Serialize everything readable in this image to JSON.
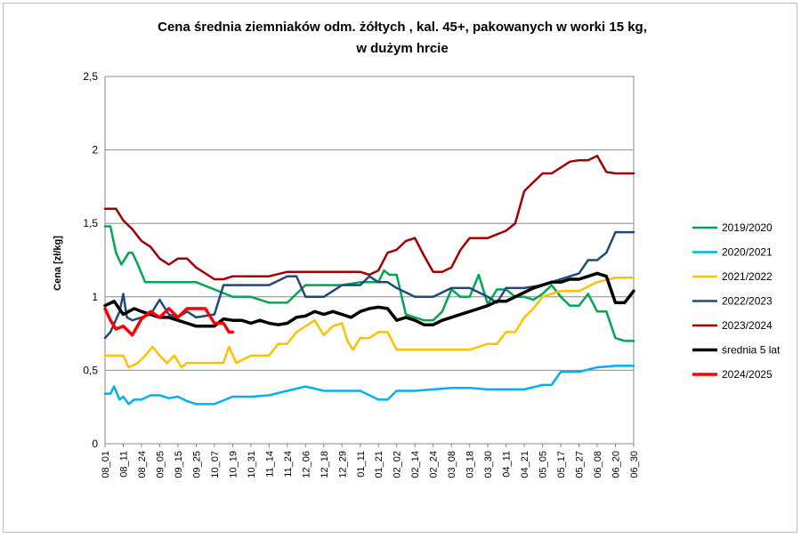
{
  "chart_data": {
    "type": "line",
    "title_lines": [
      "Cena średnia ziemniaków odm. żółtych , kal. 45+, pakowanych w worki 15 kg,",
      "w dużym hrcie"
    ],
    "xlabel": "",
    "ylabel": "Cena [zł/kg]",
    "ylim": [
      0,
      2.5
    ],
    "ytick_values": [
      0,
      0.5,
      1,
      1.5,
      2,
      2.5
    ],
    "ytick_labels": [
      "0",
      "0,5",
      "1",
      "1,5",
      "2",
      "2,5"
    ],
    "grid": "horizontal",
    "legend_position": "right",
    "categories": [
      "08_01",
      "08_11",
      "08_24",
      "09_05",
      "09_15",
      "09_25",
      "10_07",
      "10_19",
      "10_31",
      "11_14",
      "11_24",
      "12_06",
      "12_18",
      "12_29",
      "01_11",
      "01_21",
      "02_02",
      "02_14",
      "02_24",
      "03_08",
      "03_18",
      "03_30",
      "04_11",
      "04_21",
      "05_05",
      "05_17",
      "05_27",
      "06_08",
      "06_20",
      "06_30"
    ],
    "series": [
      {
        "name": "2019/2020",
        "color": "#00a650",
        "width": 2.5,
        "x": [
          0,
          0.3,
          0.6,
          0.9,
          1.3,
          1.5,
          1.8,
          2.2,
          2.5,
          3,
          3.5,
          4,
          5,
          6,
          7,
          8,
          9,
          10,
          11,
          12,
          13,
          14,
          15,
          15.3,
          15.6,
          16,
          16.5,
          17,
          17.5,
          18,
          18.5,
          19,
          19.5,
          20,
          20.5,
          21,
          21.5,
          22,
          22.5,
          23,
          23.5,
          24,
          24.5,
          25,
          25.5,
          26,
          26.5,
          27,
          27.5,
          28,
          28.5,
          29
        ],
        "values": [
          1.48,
          1.48,
          1.3,
          1.22,
          1.3,
          1.3,
          1.22,
          1.1,
          1.1,
          1.1,
          1.1,
          1.1,
          1.1,
          1.05,
          1.0,
          1.0,
          0.96,
          0.96,
          1.08,
          1.08,
          1.08,
          1.1,
          1.1,
          1.18,
          1.15,
          1.15,
          0.88,
          0.86,
          0.84,
          0.84,
          0.9,
          1.05,
          1.0,
          1.0,
          1.15,
          0.95,
          1.05,
          1.05,
          1.0,
          1.0,
          0.98,
          1.02,
          1.08,
          1.0,
          0.94,
          0.94,
          1.02,
          0.9,
          0.9,
          0.72,
          0.7,
          0.7
        ]
      },
      {
        "name": "2020/2021",
        "color": "#00b0f0",
        "width": 2.5,
        "x": [
          0,
          0.3,
          0.5,
          0.8,
          1,
          1.3,
          1.6,
          2,
          2.5,
          3,
          3.5,
          4,
          4.5,
          5,
          6,
          7,
          8,
          9,
          10,
          11,
          12,
          13,
          14,
          15,
          15.5,
          16,
          16.5,
          17,
          18,
          19,
          20,
          21,
          22,
          23,
          24,
          24.5,
          25,
          26,
          27,
          28,
          29
        ],
        "values": [
          0.34,
          0.34,
          0.39,
          0.3,
          0.32,
          0.27,
          0.3,
          0.3,
          0.33,
          0.33,
          0.31,
          0.32,
          0.29,
          0.27,
          0.27,
          0.32,
          0.32,
          0.33,
          0.36,
          0.39,
          0.36,
          0.36,
          0.36,
          0.3,
          0.3,
          0.36,
          0.36,
          0.36,
          0.37,
          0.38,
          0.38,
          0.37,
          0.37,
          0.37,
          0.4,
          0.4,
          0.49,
          0.49,
          0.52,
          0.53,
          0.53
        ]
      },
      {
        "name": "2021/2022",
        "color": "#ffc000",
        "width": 2.5,
        "x": [
          0,
          1,
          1.3,
          1.8,
          2.2,
          2.6,
          3,
          3.4,
          3.8,
          4.2,
          4.5,
          4.8,
          5.5,
          6.5,
          6.8,
          7.2,
          8,
          8.5,
          9,
          9.5,
          10,
          10.5,
          11,
          11.5,
          12,
          12.5,
          13,
          13.3,
          13.6,
          14,
          14.5,
          15,
          15.5,
          16,
          17,
          18,
          19,
          20,
          21,
          21.5,
          22,
          22.5,
          23,
          23.5,
          24,
          25,
          26,
          27,
          28,
          29
        ],
        "values": [
          0.6,
          0.6,
          0.52,
          0.55,
          0.6,
          0.66,
          0.6,
          0.55,
          0.6,
          0.52,
          0.55,
          0.55,
          0.55,
          0.55,
          0.66,
          0.55,
          0.6,
          0.6,
          0.6,
          0.68,
          0.68,
          0.76,
          0.8,
          0.84,
          0.74,
          0.8,
          0.82,
          0.7,
          0.64,
          0.72,
          0.72,
          0.76,
          0.76,
          0.64,
          0.64,
          0.64,
          0.64,
          0.64,
          0.68,
          0.68,
          0.76,
          0.76,
          0.86,
          0.92,
          1.0,
          1.04,
          1.04,
          1.1,
          1.13,
          1.13
        ]
      },
      {
        "name": "2022/2023",
        "color": "#1f497d",
        "width": 2.5,
        "x": [
          0,
          0.3,
          0.8,
          1,
          1.2,
          1.5,
          2,
          2.5,
          3,
          3.5,
          4,
          4.5,
          5,
          6,
          6.5,
          7,
          8,
          9,
          10,
          10.5,
          11,
          12,
          13,
          14,
          14.5,
          15,
          15.5,
          16,
          17,
          18,
          19,
          20,
          21,
          21.5,
          22,
          23,
          24,
          25,
          26,
          26.5,
          27,
          27.5,
          28,
          29
        ],
        "values": [
          0.72,
          0.76,
          0.9,
          1.02,
          0.86,
          0.84,
          0.86,
          0.88,
          0.98,
          0.88,
          0.86,
          0.9,
          0.86,
          0.88,
          1.08,
          1.08,
          1.08,
          1.08,
          1.14,
          1.14,
          1.0,
          1.0,
          1.08,
          1.08,
          1.14,
          1.1,
          1.1,
          1.06,
          1.0,
          1.0,
          1.06,
          1.06,
          1.0,
          0.96,
          1.06,
          1.06,
          1.08,
          1.12,
          1.16,
          1.25,
          1.25,
          1.3,
          1.44,
          1.44
        ]
      },
      {
        "name": "2023/2024",
        "color": "#a00000",
        "width": 2.5,
        "x": [
          0,
          0.6,
          1,
          1.5,
          2,
          2.5,
          3,
          3.5,
          4,
          4.5,
          5,
          6,
          6.5,
          7,
          8,
          9,
          10,
          11,
          12,
          13,
          14,
          14.5,
          15,
          15.5,
          16,
          16.5,
          17,
          17.5,
          18,
          18.5,
          19,
          19.5,
          20,
          20.5,
          21,
          22,
          22.5,
          23,
          23.5,
          24,
          24.5,
          25,
          25.5,
          26,
          26.5,
          27,
          27.5,
          28,
          29
        ],
        "values": [
          1.6,
          1.6,
          1.52,
          1.46,
          1.38,
          1.34,
          1.26,
          1.22,
          1.26,
          1.26,
          1.2,
          1.12,
          1.12,
          1.14,
          1.14,
          1.14,
          1.17,
          1.17,
          1.17,
          1.17,
          1.17,
          1.15,
          1.18,
          1.3,
          1.32,
          1.38,
          1.4,
          1.28,
          1.17,
          1.17,
          1.2,
          1.32,
          1.4,
          1.4,
          1.4,
          1.45,
          1.5,
          1.72,
          1.78,
          1.84,
          1.84,
          1.88,
          1.92,
          1.93,
          1.93,
          1.96,
          1.85,
          1.84,
          1.84
        ]
      },
      {
        "name": "średnia 5 lat",
        "color": "#000000",
        "width": 3.5,
        "x": [
          0,
          0.5,
          1,
          1.3,
          1.6,
          2,
          2.5,
          3,
          3.5,
          4,
          4.5,
          5,
          5.5,
          6,
          6.5,
          7,
          7.5,
          8,
          8.5,
          9,
          9.5,
          10,
          10.5,
          11,
          11.5,
          12,
          12.5,
          13,
          13.5,
          14,
          14.5,
          15,
          15.5,
          16,
          16.5,
          17,
          17.5,
          18,
          18.5,
          19,
          19.5,
          20,
          20.5,
          21,
          21.5,
          22,
          22.5,
          23,
          23.5,
          24,
          24.5,
          25,
          25.5,
          26,
          26.5,
          27,
          27.5,
          28,
          28.5,
          29
        ],
        "values": [
          0.94,
          0.97,
          0.88,
          0.9,
          0.92,
          0.9,
          0.88,
          0.86,
          0.86,
          0.84,
          0.82,
          0.8,
          0.8,
          0.8,
          0.85,
          0.84,
          0.84,
          0.82,
          0.84,
          0.82,
          0.81,
          0.82,
          0.86,
          0.87,
          0.9,
          0.88,
          0.9,
          0.88,
          0.86,
          0.9,
          0.92,
          0.93,
          0.92,
          0.84,
          0.86,
          0.84,
          0.81,
          0.81,
          0.84,
          0.86,
          0.88,
          0.9,
          0.92,
          0.94,
          0.97,
          0.97,
          1.0,
          1.03,
          1.06,
          1.08,
          1.1,
          1.1,
          1.12,
          1.12,
          1.14,
          1.16,
          1.14,
          0.96,
          0.96,
          1.04
        ]
      },
      {
        "name": "2024/2025",
        "color": "#ff0000",
        "width": 3.5,
        "x": [
          0,
          0.3,
          0.6,
          1,
          1.5,
          2,
          2.5,
          3,
          3.5,
          4,
          4.5,
          5,
          5.5,
          6,
          6.5,
          6.8,
          7
        ],
        "values": [
          0.92,
          0.84,
          0.78,
          0.8,
          0.74,
          0.85,
          0.9,
          0.86,
          0.92,
          0.86,
          0.92,
          0.92,
          0.92,
          0.82,
          0.82,
          0.76,
          0.76
        ]
      }
    ]
  }
}
